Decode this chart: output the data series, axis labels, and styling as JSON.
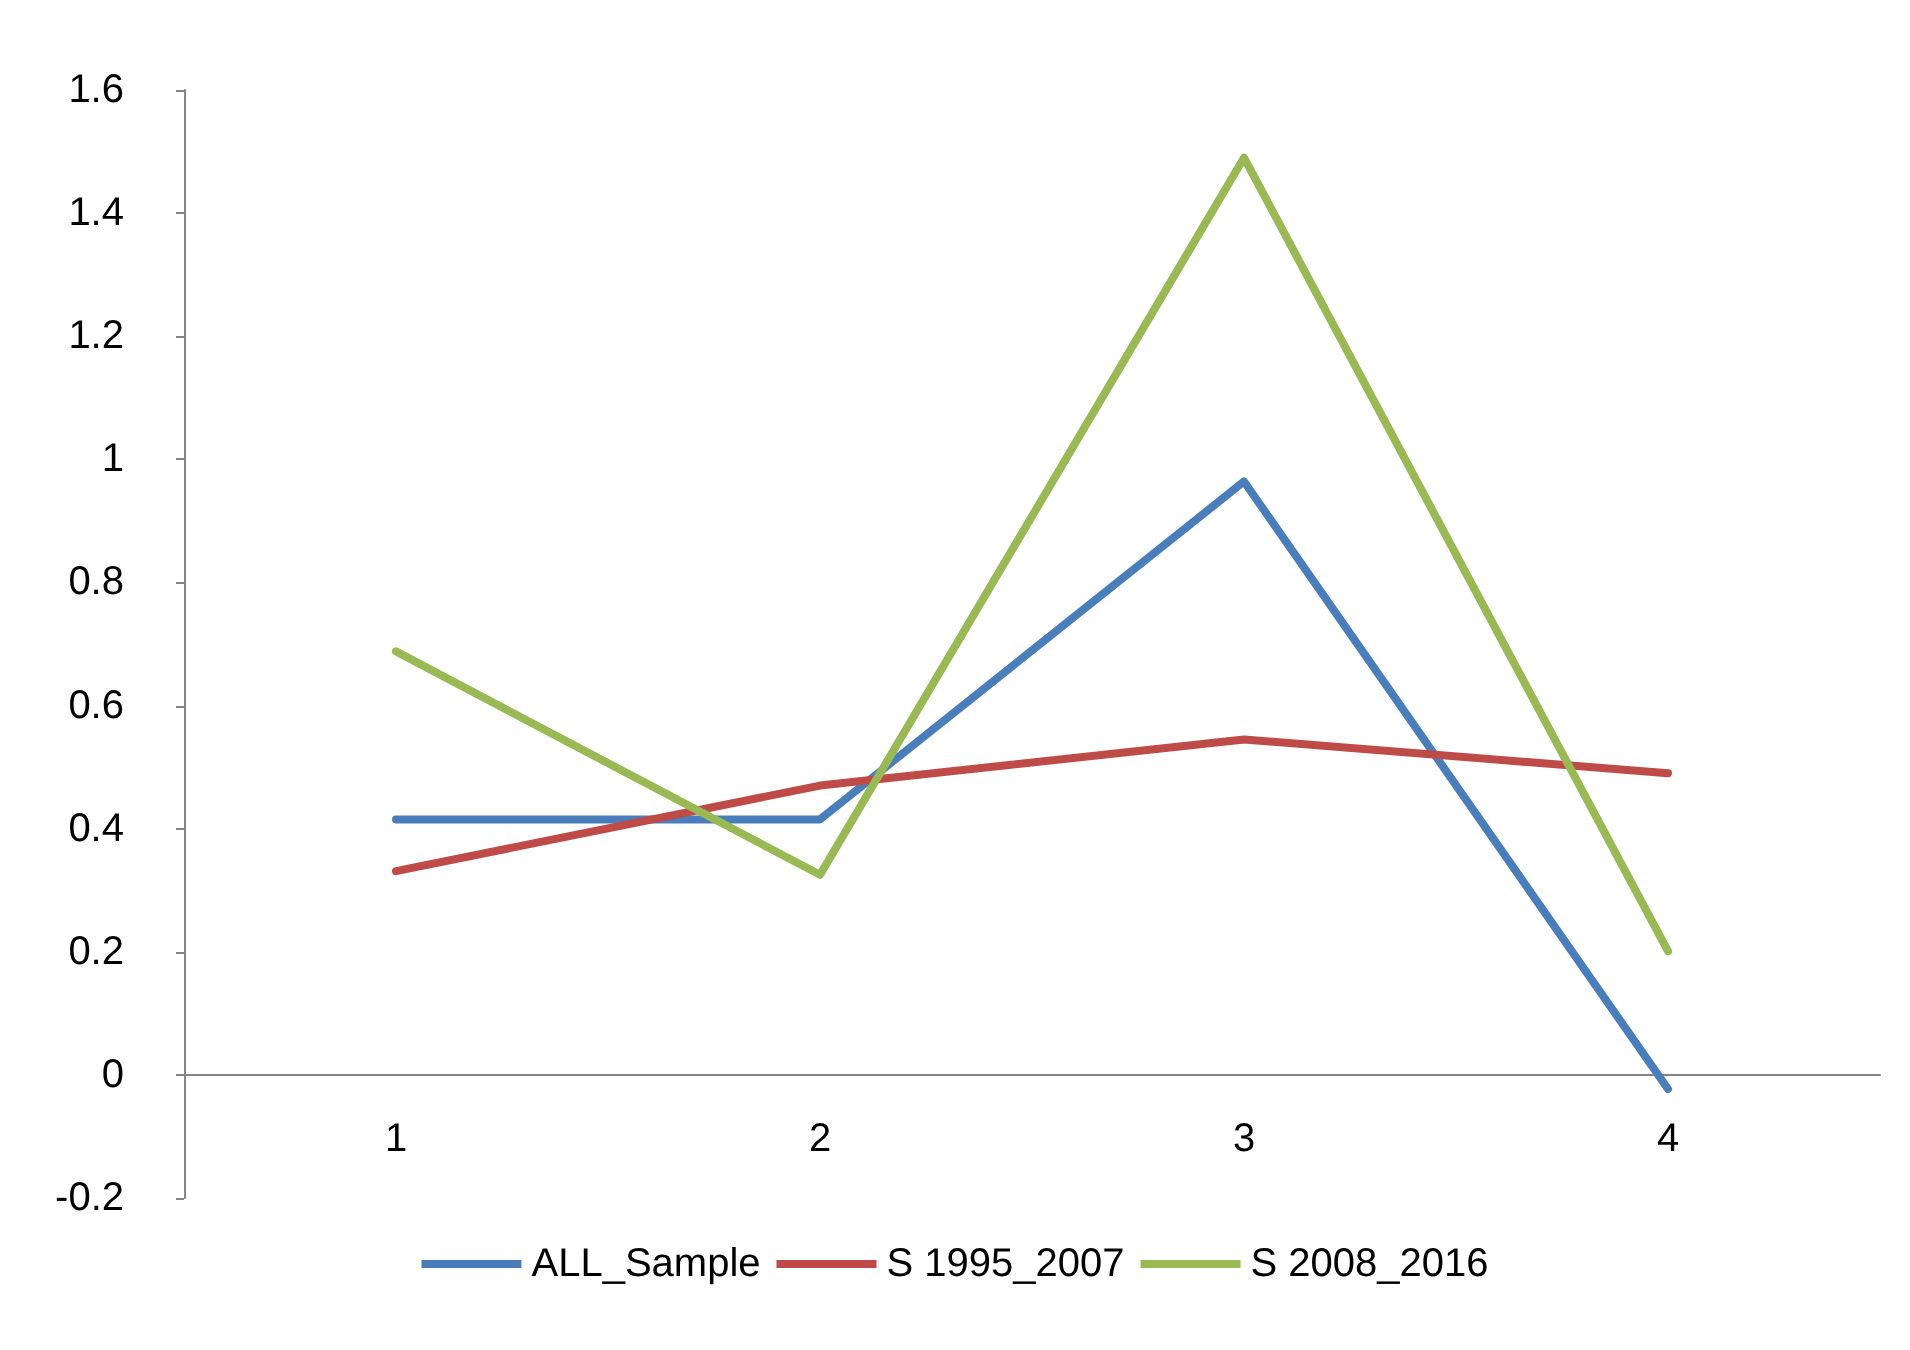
{
  "chart_data": {
    "type": "line",
    "categories": [
      "1",
      "2",
      "3",
      "4"
    ],
    "series": [
      {
        "name": "ALL_Sample",
        "color": "#4a7ebb",
        "values": [
          0.415,
          0.415,
          0.964,
          -0.023
        ]
      },
      {
        "name": "S 1995_2007",
        "color": "#be4b48",
        "values": [
          0.331,
          0.47,
          0.545,
          0.49
        ]
      },
      {
        "name": "S 2008_2016",
        "color": "#98b954",
        "values": [
          0.688,
          0.325,
          1.49,
          0.201
        ]
      }
    ],
    "ylim": [
      -0.2,
      1.6
    ],
    "yticks": [
      -0.2,
      0,
      0.2,
      0.4,
      0.6,
      0.8,
      1,
      1.2,
      1.4,
      1.6
    ],
    "grid": false,
    "legend": "bottom",
    "marker": "none",
    "line_style": "solid"
  }
}
